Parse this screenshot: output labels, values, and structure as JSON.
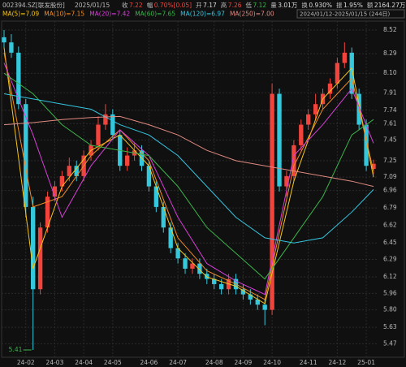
{
  "header": {
    "code": "002394.SZ[联发股份]",
    "date": "2025/01/15",
    "items": [
      {
        "label": "收",
        "value": "7.22"
      },
      {
        "label": "幅",
        "value": "0.70%[0.05]"
      },
      {
        "label": "开",
        "value": "7.17"
      },
      {
        "label": "高",
        "value": "7.26"
      },
      {
        "label": "低",
        "value": "7.12"
      },
      {
        "label": "量",
        "value": "3.01万"
      },
      {
        "label": "换",
        "value": "0.930%"
      },
      {
        "label": "振",
        "value": "1.95%"
      },
      {
        "label": "额",
        "value": "2164.27万"
      }
    ]
  },
  "chart_data": {
    "type": "candlestick",
    "subtitle": "2024/01/12-2025/01/15 (244日)",
    "up_color": "#f0443c",
    "down_color": "#35c8dc",
    "open": [
      8.45,
      8.4,
      8.3,
      7.8,
      6.8,
      6.0,
      6.6,
      6.9,
      7.0,
      7.1,
      7.2,
      7.1,
      7.3,
      7.4,
      7.6,
      7.7,
      7.5,
      7.2,
      7.3,
      7.35,
      7.2,
      7.0,
      6.8,
      6.6,
      6.4,
      6.3,
      6.2,
      6.25,
      6.15,
      6.1,
      6.05,
      6.0,
      6.1,
      6.0,
      5.95,
      5.9,
      5.85,
      5.8,
      7.9,
      7.0,
      7.1,
      7.4,
      7.6,
      7.7,
      7.8,
      7.9,
      8.0,
      8.2,
      8.3,
      7.9,
      7.6,
      7.17
    ],
    "high": [
      8.52,
      8.48,
      8.36,
      7.85,
      6.9,
      6.65,
      6.95,
      7.05,
      7.15,
      7.28,
      7.25,
      7.35,
      7.45,
      7.68,
      7.8,
      7.75,
      7.55,
      7.38,
      7.42,
      7.4,
      7.25,
      7.05,
      6.85,
      6.65,
      6.45,
      6.35,
      6.3,
      6.3,
      6.2,
      6.15,
      6.1,
      6.15,
      6.15,
      6.05,
      6.0,
      5.95,
      5.9,
      8.0,
      7.95,
      7.15,
      7.45,
      7.65,
      7.75,
      7.9,
      7.95,
      8.05,
      8.25,
      8.4,
      8.35,
      7.95,
      7.65,
      7.26
    ],
    "low": [
      8.35,
      8.25,
      7.75,
      6.7,
      5.41,
      5.95,
      6.55,
      6.85,
      6.95,
      7.05,
      7.05,
      7.05,
      7.25,
      7.35,
      7.55,
      7.45,
      7.15,
      7.15,
      7.25,
      7.15,
      6.95,
      6.75,
      6.55,
      6.35,
      6.25,
      6.15,
      6.15,
      6.1,
      6.05,
      6.0,
      5.95,
      5.95,
      5.95,
      5.9,
      5.85,
      5.8,
      5.65,
      5.75,
      6.95,
      6.9,
      7.05,
      7.35,
      7.55,
      7.65,
      7.75,
      7.85,
      7.95,
      8.15,
      7.85,
      7.55,
      7.15,
      7.12
    ],
    "close": [
      8.4,
      8.3,
      7.8,
      6.8,
      6.0,
      6.6,
      6.9,
      7.0,
      7.1,
      7.2,
      7.1,
      7.3,
      7.4,
      7.6,
      7.7,
      7.5,
      7.2,
      7.3,
      7.35,
      7.2,
      7.0,
      6.8,
      6.6,
      6.4,
      6.3,
      6.2,
      6.25,
      6.15,
      6.1,
      6.05,
      6.0,
      6.1,
      6.0,
      5.95,
      5.9,
      5.85,
      5.8,
      7.9,
      7.0,
      7.1,
      7.4,
      7.6,
      7.7,
      7.8,
      7.9,
      8.0,
      8.2,
      8.3,
      7.9,
      7.6,
      7.2,
      7.22
    ],
    "ma_x": [
      0,
      4,
      8,
      12,
      16,
      20,
      24,
      28,
      32,
      36,
      40,
      44,
      48,
      51
    ],
    "series": [
      {
        "name": "MA(5)=7.09",
        "color": "#f5c518",
        "values": [
          8.35,
          6.2,
          7.0,
          7.35,
          7.5,
          7.2,
          6.4,
          6.12,
          6.03,
          5.86,
          7.05,
          7.85,
          8.15,
          7.09
        ]
      },
      {
        "name": "MA(10)=7.15",
        "color": "#f08c28",
        "values": [
          8.3,
          6.8,
          6.9,
          7.3,
          7.55,
          7.25,
          6.5,
          6.18,
          6.05,
          5.9,
          7.2,
          7.75,
          8.05,
          7.15
        ]
      },
      {
        "name": "MA(20)=7.42",
        "color": "#d63fd6",
        "values": [
          8.2,
          7.5,
          6.7,
          7.2,
          7.55,
          7.3,
          6.7,
          6.25,
          6.08,
          5.95,
          7.3,
          7.6,
          7.95,
          7.42
        ]
      },
      {
        "name": "MA(60)=7.65",
        "color": "#3cb44b",
        "values": [
          8.1,
          7.9,
          7.6,
          7.4,
          7.35,
          7.3,
          7.0,
          6.6,
          6.35,
          6.1,
          6.5,
          6.9,
          7.5,
          7.65
        ]
      },
      {
        "name": "MA(120)=6.97",
        "color": "#34c6e0",
        "values": [
          7.9,
          7.85,
          7.8,
          7.75,
          7.6,
          7.5,
          7.3,
          7.0,
          6.7,
          6.5,
          6.45,
          6.5,
          6.75,
          6.97
        ]
      },
      {
        "name": "MA(250)=7.00",
        "color": "#e08a80",
        "values": [
          7.6,
          7.62,
          7.65,
          7.67,
          7.68,
          7.6,
          7.5,
          7.35,
          7.25,
          7.2,
          7.15,
          7.1,
          7.05,
          7.0
        ]
      }
    ],
    "annotation": {
      "text": "5.41",
      "index": 4
    },
    "ylim": [
      5.41,
      8.52
    ],
    "yticks": [
      8.52,
      8.29,
      {
        "value": 8.1,
        "label": "8.10"
      },
      7.91,
      7.74,
      7.61,
      7.45,
      7.25,
      7.09,
      6.96,
      6.79,
      6.62,
      6.45,
      6.29,
      6.12,
      5.96,
      {
        "value": 5.8,
        "label": "5.80"
      },
      5.63,
      5.47
    ],
    "xticks": [
      {
        "value": 3,
        "label": "24-02"
      },
      {
        "value": 7,
        "label": "24-03"
      },
      {
        "value": 11,
        "label": "24-04"
      },
      {
        "value": 15,
        "label": "24-05"
      },
      {
        "value": 20,
        "label": "24-06"
      },
      {
        "value": 24,
        "label": "24-07"
      },
      {
        "value": 29,
        "label": "24-08"
      },
      {
        "value": 33,
        "label": "24-09"
      },
      {
        "value": 37,
        "label": "24-10"
      },
      {
        "value": 42,
        "label": "24-11"
      },
      {
        "value": 46,
        "label": "24-12"
      },
      {
        "value": 50,
        "label": "25-01"
      }
    ],
    "grid": true
  }
}
